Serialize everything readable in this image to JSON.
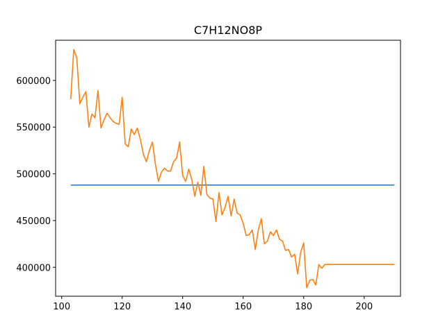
{
  "chart_data": {
    "type": "line",
    "title": "C7H12NO8P",
    "xlabel": "",
    "ylabel": "",
    "xlim": [
      98,
      212
    ],
    "ylim": [
      369000,
      643000
    ],
    "x_ticks": [
      100,
      120,
      140,
      160,
      180,
      200
    ],
    "y_ticks": [
      400000,
      450000,
      500000,
      550000,
      600000
    ],
    "grid": false,
    "series": [
      {
        "color": "#1f77b4",
        "x": [
          103,
          210
        ],
        "y": [
          488000,
          488000
        ]
      },
      {
        "color": "#ff7f0e",
        "x": [
          103,
          104,
          105,
          106,
          107,
          108,
          109,
          110,
          111,
          112,
          113,
          114,
          115,
          116,
          117,
          118,
          119,
          120,
          121,
          122,
          123,
          124,
          125,
          126,
          127,
          128,
          129,
          130,
          131,
          132,
          133,
          134,
          135,
          136,
          137,
          138,
          139,
          140,
          141,
          142,
          143,
          144,
          145,
          146,
          147,
          148,
          149,
          150,
          151,
          152,
          153,
          154,
          155,
          156,
          157,
          158,
          159,
          160,
          161,
          162,
          163,
          164,
          165,
          166,
          167,
          168,
          169,
          170,
          171,
          172,
          173,
          174,
          175,
          176,
          177,
          178,
          179,
          180,
          181,
          182,
          183,
          184,
          185,
          186,
          187,
          188,
          189,
          190,
          191,
          192,
          193,
          194,
          195,
          196,
          197,
          198,
          199,
          200,
          201,
          202,
          203,
          204,
          205,
          206,
          207,
          208,
          209,
          210
        ],
        "y": [
          580000,
          633000,
          624000,
          575000,
          582000,
          588000,
          550000,
          564000,
          560000,
          589000,
          549000,
          558000,
          565000,
          560000,
          556000,
          554000,
          553000,
          582000,
          532000,
          529000,
          548000,
          542000,
          549000,
          537000,
          521000,
          513000,
          525000,
          534000,
          510000,
          492000,
          502000,
          506000,
          503000,
          503000,
          513000,
          517000,
          534000,
          498000,
          492000,
          505000,
          494000,
          476000,
          491000,
          477000,
          508000,
          478000,
          474000,
          473000,
          449000,
          480000,
          456000,
          464000,
          476000,
          455000,
          473000,
          458000,
          456000,
          447000,
          434000,
          435000,
          440000,
          419000,
          440000,
          452000,
          425000,
          428000,
          438000,
          434000,
          440000,
          430000,
          428000,
          418000,
          419000,
          411000,
          414000,
          393000,
          416000,
          426000,
          378000,
          386000,
          387000,
          381000,
          403000,
          399000,
          403000,
          403000,
          403000,
          403000,
          403000,
          403000,
          403000,
          403000,
          403000,
          403000,
          403000,
          403000,
          403000,
          403000,
          403000,
          403000,
          403000,
          403000,
          403000,
          403000,
          403000,
          403000,
          403000,
          403000
        ]
      }
    ]
  }
}
